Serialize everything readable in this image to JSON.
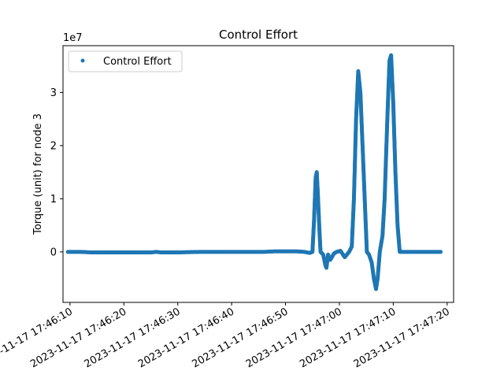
{
  "chart_data": {
    "type": "scatter",
    "title": "Control Effort",
    "xlabel": "",
    "ylabel": "Torque (unit) for node 3",
    "y_multiplier_label": "1e7",
    "x_ticks": [
      "2023-11-17 17:46:10",
      "2023-11-17 17:46:20",
      "2023-11-17 17:46:30",
      "2023-11-17 17:46:40",
      "2023-11-17 17:46:50",
      "2023-11-17 17:47:00",
      "2023-11-17 17:47:10",
      "2023-11-17 17:47:20"
    ],
    "y_ticks": [
      "0",
      "1",
      "2",
      "3"
    ],
    "xlim": [
      "2023-11-17 17:46:08.7",
      "2023-11-17 17:47:21.2"
    ],
    "ylim": [
      -0.95,
      3.88
    ],
    "x_unit": "seconds after 17:46:00",
    "y_unit": "1e7",
    "grid": false,
    "legend": {
      "position": "upper-left",
      "entries": [
        "Control Effort"
      ]
    },
    "series": [
      {
        "name": "Control Effort",
        "color": "#1f77b4",
        "points": [
          [
            9.6,
            0.0
          ],
          [
            12.0,
            0.0
          ],
          [
            14.0,
            -0.01
          ],
          [
            18.0,
            -0.01
          ],
          [
            22.0,
            -0.01
          ],
          [
            25.0,
            -0.01
          ],
          [
            26.0,
            0.0
          ],
          [
            27.0,
            -0.01
          ],
          [
            30.0,
            -0.01
          ],
          [
            34.0,
            0.0
          ],
          [
            38.0,
            0.0
          ],
          [
            42.0,
            0.0
          ],
          [
            46.0,
            0.0
          ],
          [
            48.0,
            0.01
          ],
          [
            50.0,
            0.01
          ],
          [
            52.0,
            0.01
          ],
          [
            53.5,
            0.0
          ],
          [
            54.5,
            -0.02
          ],
          [
            55.0,
            0.0
          ],
          [
            55.3,
            0.6
          ],
          [
            55.6,
            1.4
          ],
          [
            55.8,
            1.5
          ],
          [
            56.0,
            1.1
          ],
          [
            56.3,
            0.4
          ],
          [
            56.5,
            0.0
          ],
          [
            57.0,
            -0.05
          ],
          [
            57.4,
            -0.25
          ],
          [
            57.6,
            -0.3
          ],
          [
            57.9,
            -0.05
          ],
          [
            58.3,
            -0.15
          ],
          [
            58.6,
            -0.1
          ],
          [
            59.0,
            -0.03
          ],
          [
            59.5,
            0.0
          ],
          [
            60.2,
            0.02
          ],
          [
            61.0,
            -0.1
          ],
          [
            61.8,
            0.0
          ],
          [
            62.3,
            0.1
          ],
          [
            62.7,
            1.0
          ],
          [
            63.1,
            2.5
          ],
          [
            63.5,
            3.4
          ],
          [
            63.9,
            3.0
          ],
          [
            64.3,
            2.0
          ],
          [
            64.7,
            1.0
          ],
          [
            65.1,
            0.0
          ],
          [
            65.5,
            -0.05
          ],
          [
            66.0,
            -0.2
          ],
          [
            66.4,
            -0.5
          ],
          [
            66.8,
            -0.7
          ],
          [
            67.1,
            -0.5
          ],
          [
            67.5,
            0.0
          ],
          [
            68.0,
            0.3
          ],
          [
            68.4,
            1.0
          ],
          [
            68.9,
            2.5
          ],
          [
            69.3,
            3.6
          ],
          [
            69.6,
            3.7
          ],
          [
            70.0,
            2.8
          ],
          [
            70.4,
            1.5
          ],
          [
            70.8,
            0.5
          ],
          [
            71.2,
            0.0
          ],
          [
            73.0,
            0.0
          ],
          [
            76.0,
            0.0
          ],
          [
            78.8,
            0.0
          ]
        ]
      }
    ]
  }
}
